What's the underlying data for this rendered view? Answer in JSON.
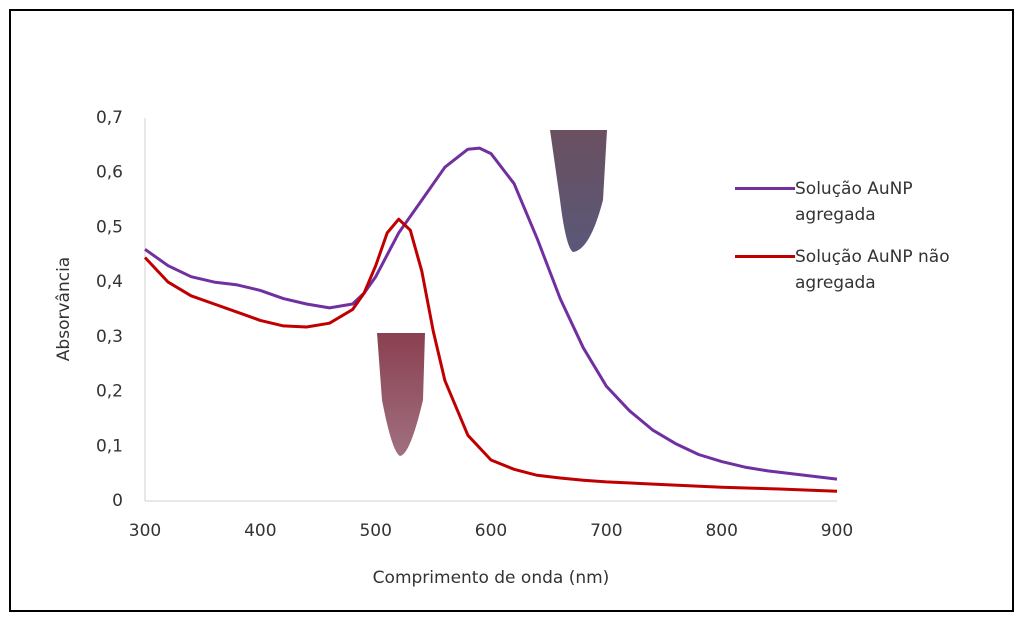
{
  "chart_data": {
    "type": "line",
    "xlabel": "Comprimento de onda (nm)",
    "ylabel": "Absorvância",
    "xlim": [
      300,
      900
    ],
    "xticks": [
      300,
      400,
      500,
      600,
      700,
      800,
      900
    ],
    "ylim": [
      0,
      0.7
    ],
    "yticks": [
      0,
      {
        "value": 0.1,
        "label": "0,1"
      },
      {
        "value": 0.2,
        "label": "0,2"
      },
      {
        "value": 0.3,
        "label": "0,3"
      },
      {
        "value": 0.4,
        "label": "0,4"
      },
      {
        "value": 0.5,
        "label": "0,5"
      },
      {
        "value": 0.6,
        "label": "0,6"
      },
      {
        "value": 0.7,
        "label": "0,7"
      }
    ],
    "grid": false,
    "legend": "right",
    "series": [
      {
        "name": "Solução AuNP agregada",
        "color": "#7030a0",
        "x": [
          300,
          320,
          340,
          360,
          380,
          400,
          420,
          440,
          460,
          480,
          490,
          500,
          520,
          540,
          560,
          580,
          590,
          600,
          620,
          640,
          660,
          680,
          700,
          720,
          740,
          760,
          780,
          800,
          820,
          840,
          860,
          880,
          900
        ],
        "values": [
          0.46,
          0.43,
          0.41,
          0.4,
          0.395,
          0.385,
          0.37,
          0.36,
          0.353,
          0.36,
          0.38,
          0.41,
          0.49,
          0.55,
          0.61,
          0.643,
          0.645,
          0.635,
          0.58,
          0.48,
          0.37,
          0.28,
          0.21,
          0.165,
          0.13,
          0.105,
          0.085,
          0.072,
          0.062,
          0.055,
          0.05,
          0.045,
          0.04
        ]
      },
      {
        "name": "Solução AuNP não agregada",
        "color": "#c00000",
        "x": [
          300,
          320,
          340,
          360,
          380,
          400,
          420,
          440,
          460,
          480,
          490,
          500,
          510,
          520,
          530,
          540,
          550,
          560,
          580,
          600,
          620,
          640,
          660,
          680,
          700,
          750,
          800,
          850,
          900
        ],
        "values": [
          0.445,
          0.4,
          0.375,
          0.36,
          0.345,
          0.33,
          0.32,
          0.318,
          0.325,
          0.35,
          0.38,
          0.43,
          0.49,
          0.515,
          0.495,
          0.42,
          0.31,
          0.22,
          0.12,
          0.075,
          0.058,
          0.047,
          0.042,
          0.038,
          0.035,
          0.03,
          0.025,
          0.022,
          0.018
        ]
      }
    ]
  }
}
